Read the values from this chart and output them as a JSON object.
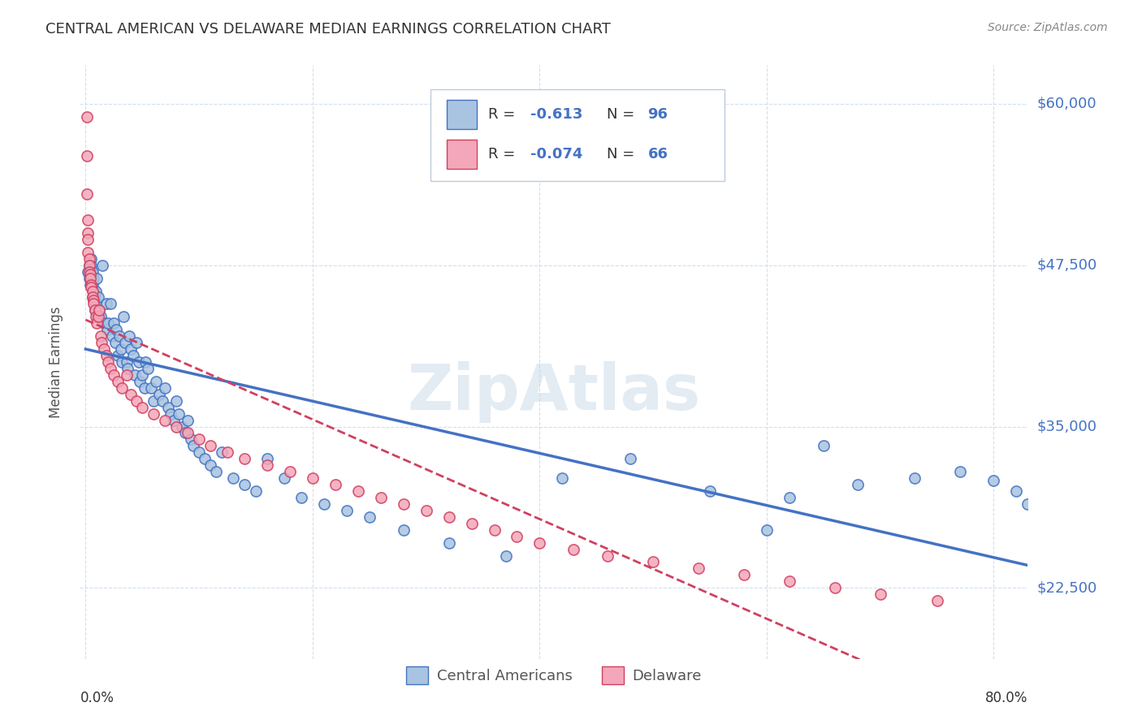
{
  "title": "CENTRAL AMERICAN VS DELAWARE MEDIAN EARNINGS CORRELATION CHART",
  "source": "Source: ZipAtlas.com",
  "ylabel": "Median Earnings",
  "yticks": [
    22500,
    35000,
    47500,
    60000
  ],
  "ytick_labels": [
    "$22,500",
    "$35,000",
    "$47,500",
    "$60,000"
  ],
  "ymin": 17000,
  "ymax": 63000,
  "xmin": -0.005,
  "xmax": 0.83,
  "color_blue": "#a8c4e0",
  "color_pink": "#f4a7b9",
  "color_blue_line": "#4472C4",
  "color_pink_line": "#d04060",
  "color_blue_dark": "#4472C4",
  "watermark": "ZipAtlas",
  "legend_label1": "Central Americans",
  "legend_label2": "Delaware",
  "blue_x": [
    0.002,
    0.003,
    0.003,
    0.004,
    0.005,
    0.005,
    0.005,
    0.005,
    0.006,
    0.006,
    0.006,
    0.007,
    0.007,
    0.008,
    0.008,
    0.009,
    0.009,
    0.01,
    0.01,
    0.011,
    0.012,
    0.013,
    0.015,
    0.016,
    0.018,
    0.019,
    0.02,
    0.022,
    0.023,
    0.025,
    0.026,
    0.027,
    0.028,
    0.03,
    0.031,
    0.032,
    0.033,
    0.035,
    0.036,
    0.037,
    0.038,
    0.04,
    0.042,
    0.043,
    0.045,
    0.047,
    0.048,
    0.05,
    0.052,
    0.053,
    0.055,
    0.058,
    0.06,
    0.062,
    0.065,
    0.068,
    0.07,
    0.073,
    0.075,
    0.078,
    0.08,
    0.082,
    0.085,
    0.088,
    0.09,
    0.093,
    0.095,
    0.1,
    0.105,
    0.11,
    0.115,
    0.12,
    0.13,
    0.14,
    0.15,
    0.16,
    0.175,
    0.19,
    0.21,
    0.23,
    0.25,
    0.28,
    0.32,
    0.37,
    0.42,
    0.48,
    0.55,
    0.62,
    0.68,
    0.73,
    0.77,
    0.8,
    0.82,
    0.83,
    0.65,
    0.6
  ],
  "blue_y": [
    47000,
    46500,
    47500,
    46000,
    48000,
    47000,
    46500,
    47500,
    46000,
    45000,
    47000,
    46500,
    45500,
    44000,
    45000,
    45500,
    44500,
    43500,
    46500,
    45000,
    44000,
    43500,
    47500,
    43000,
    44500,
    42500,
    43000,
    44500,
    42000,
    43000,
    41500,
    42500,
    40500,
    42000,
    41000,
    40000,
    43500,
    41500,
    40000,
    39500,
    42000,
    41000,
    40500,
    39000,
    41500,
    40000,
    38500,
    39000,
    38000,
    40000,
    39500,
    38000,
    37000,
    38500,
    37500,
    37000,
    38000,
    36500,
    36000,
    35500,
    37000,
    36000,
    35000,
    34500,
    35500,
    34000,
    33500,
    33000,
    32500,
    32000,
    31500,
    33000,
    31000,
    30500,
    30000,
    32500,
    31000,
    29500,
    29000,
    28500,
    28000,
    27000,
    26000,
    25000,
    31000,
    32500,
    30000,
    29500,
    30500,
    31000,
    31500,
    30800,
    30000,
    29000,
    33500,
    27000
  ],
  "pink_x": [
    0.001,
    0.001,
    0.001,
    0.002,
    0.002,
    0.002,
    0.002,
    0.003,
    0.003,
    0.003,
    0.004,
    0.004,
    0.005,
    0.005,
    0.006,
    0.006,
    0.007,
    0.007,
    0.008,
    0.009,
    0.01,
    0.011,
    0.012,
    0.013,
    0.014,
    0.016,
    0.018,
    0.02,
    0.022,
    0.025,
    0.028,
    0.032,
    0.036,
    0.04,
    0.045,
    0.05,
    0.06,
    0.07,
    0.08,
    0.09,
    0.1,
    0.11,
    0.125,
    0.14,
    0.16,
    0.18,
    0.2,
    0.22,
    0.24,
    0.26,
    0.28,
    0.3,
    0.32,
    0.34,
    0.36,
    0.38,
    0.4,
    0.43,
    0.46,
    0.5,
    0.54,
    0.58,
    0.62,
    0.66,
    0.7,
    0.75
  ],
  "pink_y": [
    59000,
    56000,
    53000,
    51000,
    50000,
    49500,
    48500,
    48000,
    47500,
    47000,
    46800,
    46500,
    46000,
    45800,
    45500,
    45000,
    44800,
    44500,
    44000,
    43500,
    43000,
    43500,
    44000,
    42000,
    41500,
    41000,
    40500,
    40000,
    39500,
    39000,
    38500,
    38000,
    39000,
    37500,
    37000,
    36500,
    36000,
    35500,
    35000,
    34500,
    34000,
    33500,
    33000,
    32500,
    32000,
    31500,
    31000,
    30500,
    30000,
    29500,
    29000,
    28500,
    28000,
    27500,
    27000,
    26500,
    26000,
    25500,
    25000,
    24500,
    24000,
    23500,
    23000,
    22500,
    22000,
    21500
  ]
}
